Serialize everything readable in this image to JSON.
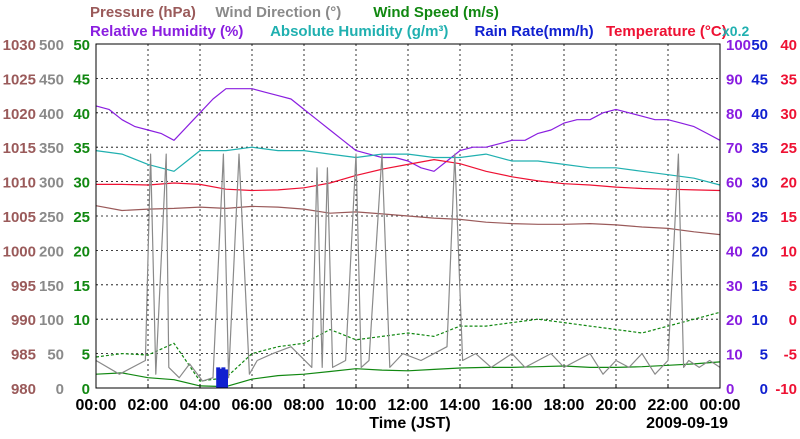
{
  "chart_data": {
    "type": "line",
    "title_row1": [
      {
        "text": "Pressure (hPa)",
        "color": "#9a5a5a"
      },
      {
        "text": "Wind Direction (°)",
        "color": "#8a8a8a"
      },
      {
        "text": "Wind Speed (m/s)",
        "color": "#118811"
      }
    ],
    "title_row2": [
      {
        "text": "Relative Humidity (%)",
        "color": "#8a1ee0"
      },
      {
        "text": "Absolute Humidity (g/m³)",
        "color": "#20b0b0"
      },
      {
        "text": "Rain Rate(mm/h)",
        "color": "#1020d0"
      },
      {
        "text": "Temperature (°C)",
        "color": "#ee1133"
      }
    ],
    "right_note": "x0.2",
    "xlabel": "Time (JST)",
    "date_label": "2009-09-19",
    "x_ticks": [
      "00:00",
      "02:00",
      "04:00",
      "06:00",
      "08:00",
      "10:00",
      "12:00",
      "14:00",
      "16:00",
      "18:00",
      "20:00",
      "22:00",
      "00:00"
    ],
    "xlim_hours": [
      0,
      24
    ],
    "grid": true,
    "axes": {
      "pressure": {
        "color": "#9a5a5a",
        "ticks": [
          "980",
          "985",
          "990",
          "995",
          "1000",
          "1005",
          "1010",
          "1015",
          "1020",
          "1025",
          "1030"
        ]
      },
      "wind_dir": {
        "color": "#8a8a8a",
        "ticks": [
          "0",
          "50",
          "100",
          "150",
          "200",
          "250",
          "300",
          "350",
          "400",
          "450",
          "500"
        ]
      },
      "wind_speed": {
        "color": "#118811",
        "ticks": [
          "0",
          "5",
          "10",
          "15",
          "20",
          "25",
          "30",
          "35",
          "40",
          "45",
          "50"
        ]
      },
      "humidity": {
        "color": "#8a1ee0",
        "ticks": [
          "0",
          "10",
          "20",
          "30",
          "40",
          "50",
          "60",
          "70",
          "80",
          "90",
          "100"
        ]
      },
      "rain": {
        "color": "#1020d0",
        "ticks": [
          "0",
          "5",
          "10",
          "15",
          "20",
          "25",
          "30",
          "35",
          "40",
          "45",
          "50"
        ]
      },
      "temperature": {
        "color": "#ee1133",
        "ticks": [
          "-10",
          "-5",
          "0",
          "5",
          "10",
          "15",
          "20",
          "25",
          "30",
          "35",
          "40"
        ]
      }
    },
    "series": [
      {
        "key": "pressure",
        "name": "Pressure (hPa)",
        "color": "#9a5a5a",
        "ylim": [
          980,
          1030
        ],
        "x": [
          0,
          1,
          2,
          3,
          4,
          5,
          6,
          7,
          8,
          9,
          10,
          11,
          12,
          13,
          14,
          15,
          16,
          17,
          18,
          19,
          20,
          21,
          22,
          23,
          24
        ],
        "y": [
          1006.5,
          1005.8,
          1006.0,
          1006.1,
          1006.3,
          1006.1,
          1006.4,
          1006.3,
          1006.0,
          1005.4,
          1005.6,
          1005.3,
          1005.0,
          1004.7,
          1004.5,
          1004.1,
          1003.9,
          1003.8,
          1003.8,
          1003.9,
          1003.7,
          1003.4,
          1003.2,
          1002.7,
          1002.3
        ]
      },
      {
        "key": "relative_humidity",
        "name": "Relative Humidity (%)",
        "color": "#8a1ee0",
        "ylim": [
          0,
          100
        ],
        "x": [
          0,
          0.5,
          1,
          1.5,
          2,
          2.5,
          3,
          3.5,
          4,
          4.5,
          5,
          5.5,
          6,
          6.5,
          7,
          7.5,
          8,
          8.5,
          9,
          9.5,
          10,
          10.5,
          11,
          11.5,
          12,
          12.5,
          13,
          13.5,
          14,
          14.5,
          15,
          15.5,
          16,
          16.5,
          17,
          17.5,
          18,
          18.5,
          19,
          19.5,
          20,
          20.5,
          21,
          21.5,
          22,
          22.5,
          23,
          23.5,
          24
        ],
        "y": [
          82,
          81,
          78,
          76,
          75,
          74,
          72,
          76,
          80,
          84,
          87,
          87,
          87,
          86,
          85,
          84,
          81,
          78,
          75,
          72,
          69,
          68,
          67,
          67,
          66,
          64,
          63,
          66,
          69,
          70,
          70,
          71,
          72,
          72,
          74,
          75,
          77,
          78,
          78,
          80,
          81,
          80,
          79,
          78,
          78,
          77,
          76,
          74,
          72
        ]
      },
      {
        "key": "absolute_humidity",
        "name": "Absolute Humidity (g/m³)",
        "color": "#20b0b0",
        "ylim": [
          0,
          100
        ],
        "scale_note": "x0.2",
        "x": [
          0,
          1,
          2,
          3,
          3.5,
          4,
          5,
          6,
          7,
          8,
          9,
          10,
          11,
          12,
          13,
          14,
          15,
          16,
          17,
          18,
          19,
          20,
          21,
          22,
          23,
          24
        ],
        "y": [
          69,
          68,
          65,
          63,
          66,
          69,
          69,
          70,
          69,
          69,
          68,
          67,
          68,
          68,
          67,
          67,
          68,
          66,
          66,
          65,
          64,
          64,
          63,
          62,
          61,
          59
        ]
      },
      {
        "key": "temperature",
        "name": "Temperature (°C)",
        "color": "#ee1133",
        "ylim": [
          -10,
          40
        ],
        "x": [
          0,
          1,
          2,
          3,
          4,
          5,
          6,
          7,
          8,
          9,
          10,
          11,
          12,
          13,
          14,
          15,
          16,
          17,
          18,
          19,
          20,
          21,
          22,
          23,
          24
        ],
        "y": [
          19.6,
          19.6,
          19.5,
          19.8,
          19.6,
          18.9,
          18.7,
          18.8,
          19.1,
          19.8,
          20.9,
          21.8,
          22.5,
          23.2,
          22.6,
          21.5,
          20.7,
          20.1,
          19.7,
          19.5,
          19.2,
          19.0,
          18.9,
          18.8,
          18.7
        ]
      },
      {
        "key": "wind_speed",
        "name": "Wind Speed (m/s)",
        "color": "#118811",
        "ylim": [
          0,
          50
        ],
        "x": [
          0,
          1,
          2,
          3,
          4,
          5,
          6,
          7,
          8,
          9,
          10,
          11,
          12,
          13,
          14,
          15,
          16,
          17,
          18,
          19,
          20,
          21,
          22,
          23,
          24
        ],
        "y": [
          2.0,
          2.2,
          1.5,
          1.2,
          0.3,
          0.2,
          1.3,
          1.8,
          2.0,
          2.4,
          2.8,
          2.6,
          2.5,
          2.7,
          2.9,
          3.0,
          3.0,
          3.1,
          3.2,
          3.0,
          3.0,
          3.1,
          3.3,
          3.5,
          3.8
        ]
      },
      {
        "key": "wind_gust",
        "name": "",
        "color": "#118811",
        "dashed": true,
        "ylim": [
          0,
          50
        ],
        "x": [
          0,
          1,
          2,
          3,
          4,
          5,
          6,
          7,
          8,
          9,
          10,
          11,
          12,
          13,
          14,
          15,
          16,
          17,
          18,
          19,
          20,
          21,
          22,
          23,
          24
        ],
        "y": [
          4.5,
          5.0,
          4.8,
          6.5,
          1.0,
          1.5,
          5.0,
          6.0,
          6.5,
          8.5,
          7.0,
          7.5,
          8.0,
          7.5,
          9.0,
          9.0,
          9.5,
          10.0,
          9.5,
          9.0,
          8.5,
          8.0,
          9.0,
          10.0,
          11.0
        ]
      },
      {
        "key": "wind_direction",
        "name": "Wind Direction (°)",
        "color": "#8a8a8a",
        "ylim": [
          0,
          500
        ],
        "x": [
          0,
          0.9,
          1.9,
          2.1,
          2.3,
          2.7,
          2.8,
          3.2,
          3.6,
          4.1,
          4.5,
          4.9,
          5.1,
          5.5,
          5.9,
          6.2,
          6.8,
          7.5,
          8.3,
          8.5,
          8.7,
          8.9,
          9.1,
          9.6,
          10.0,
          10.2,
          10.5,
          11.0,
          11.3,
          11.8,
          12.5,
          13.5,
          13.8,
          14.1,
          14.6,
          15.2,
          15.6,
          16.0,
          16.5,
          17.0,
          17.5,
          18.0,
          18.5,
          19.0,
          19.5,
          20.0,
          20.5,
          21.0,
          21.5,
          22.0,
          22.4,
          22.6,
          22.8,
          23.2,
          23.6,
          24.0
        ],
        "y": [
          40,
          20,
          40,
          340,
          20,
          340,
          30,
          15,
          35,
          10,
          15,
          340,
          15,
          340,
          20,
          40,
          50,
          60,
          30,
          320,
          30,
          320,
          30,
          40,
          340,
          30,
          40,
          340,
          30,
          50,
          40,
          60,
          340,
          40,
          50,
          30,
          40,
          50,
          30,
          40,
          50,
          30,
          40,
          50,
          20,
          40,
          30,
          50,
          20,
          40,
          340,
          30,
          40,
          30,
          40,
          30
        ]
      },
      {
        "key": "rain_rate",
        "name": "Rain Rate(mm/h)",
        "color": "#1020d0",
        "ylim": [
          0,
          50
        ],
        "x": [
          4.7,
          4.8,
          4.9,
          5.0
        ],
        "y": [
          3.0,
          2.8,
          3.0,
          2.7
        ]
      }
    ]
  }
}
